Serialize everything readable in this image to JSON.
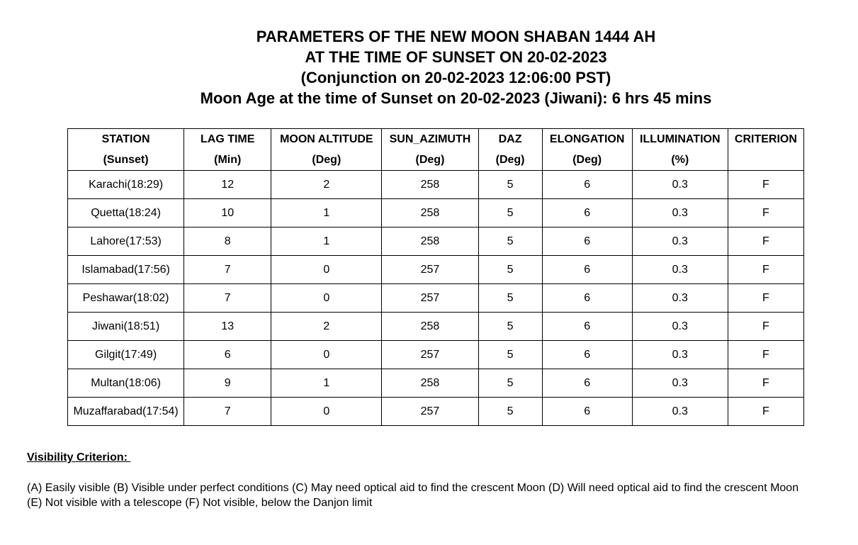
{
  "title": {
    "line1": "PARAMETERS OF THE NEW MOON SHABAN 1444 AH",
    "line2": "AT THE TIME OF SUNSET ON 20-02-2023",
    "line3": "(Conjunction on 20-02-2023 12:06:00 PST)",
    "line4": "Moon Age at the time of Sunset on 20-02-2023 (Jiwani): 6 hrs 45 mins"
  },
  "table": {
    "headers": [
      {
        "line1": "STATION",
        "line2": "(Sunset)"
      },
      {
        "line1": "LAG TIME",
        "line2": "(Min)"
      },
      {
        "line1": "MOON ALTITUDE",
        "line2": "(Deg)"
      },
      {
        "line1": "SUN_AZIMUTH",
        "line2": "(Deg)"
      },
      {
        "line1": "DAZ",
        "line2": "(Deg)"
      },
      {
        "line1": "ELONGATION",
        "line2": "(Deg)"
      },
      {
        "line1": "ILLUMINATION",
        "line2": "(%)"
      },
      {
        "line1": "CRITERION",
        "line2": ""
      }
    ],
    "rows": [
      [
        "Karachi(18:29)",
        "12",
        "2",
        "258",
        "5",
        "6",
        "0.3",
        "F"
      ],
      [
        "Quetta(18:24)",
        "10",
        "1",
        "258",
        "5",
        "6",
        "0.3",
        "F"
      ],
      [
        "Lahore(17:53)",
        "8",
        "1",
        "258",
        "5",
        "6",
        "0.3",
        "F"
      ],
      [
        "Islamabad(17:56)",
        "7",
        "0",
        "257",
        "5",
        "6",
        "0.3",
        "F"
      ],
      [
        "Peshawar(18:02)",
        "7",
        "0",
        "257",
        "5",
        "6",
        "0.3",
        "F"
      ],
      [
        "Jiwani(18:51)",
        "13",
        "2",
        "258",
        "5",
        "6",
        "0.3",
        "F"
      ],
      [
        "Gilgit(17:49)",
        "6",
        "0",
        "257",
        "5",
        "6",
        "0.3",
        "F"
      ],
      [
        "Multan(18:06)",
        "9",
        "1",
        "258",
        "5",
        "6",
        "0.3",
        "F"
      ],
      [
        "Muzaffarabad(17:54)",
        "7",
        "0",
        "257",
        "5",
        "6",
        "0.3",
        "F"
      ]
    ]
  },
  "visibility_criterion": {
    "heading": "Visibility Criterion: ",
    "line1": "(A)  Easily visible  (B) Visible under perfect conditions  (C)  May need optical aid to find the crescent Moon  (D)  Will need optical aid to find the crescent Moon",
    "line2": "(E)  Not visible with a telescope  (F)  Not visible, below the Danjon limit"
  }
}
